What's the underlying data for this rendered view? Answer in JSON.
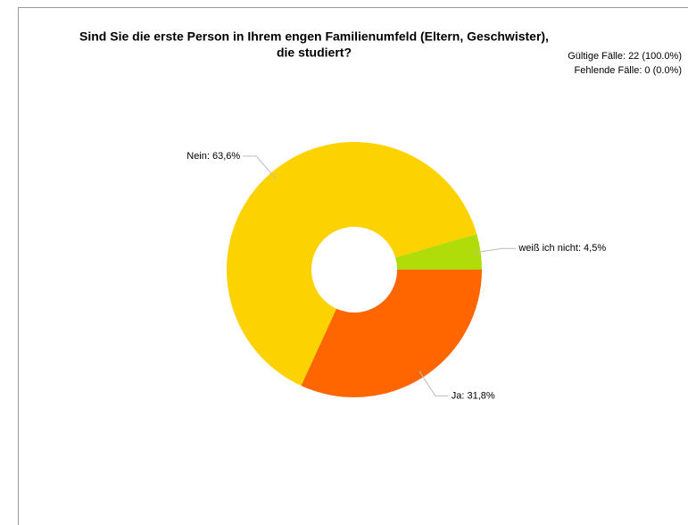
{
  "chart_data": {
    "type": "donut",
    "title": [
      "Sind Sie die erste Person in Ihrem engen Familienumfeld (Eltern, Geschwister),",
      "die studiert?"
    ],
    "annotations": [
      "Gültige Fälle: 22 (100.0%)",
      "Fehlende Fälle: 0 (0.0%)"
    ],
    "values": [
      31.8,
      63.6,
      4.5
    ],
    "value_labels": [
      "Ja: 31,8%",
      "Nein: 63,6%",
      "weiß ich nicht: 4,5%"
    ],
    "colors": [
      "#ff6600",
      "#fcd200",
      "#b0dc0a"
    ]
  }
}
